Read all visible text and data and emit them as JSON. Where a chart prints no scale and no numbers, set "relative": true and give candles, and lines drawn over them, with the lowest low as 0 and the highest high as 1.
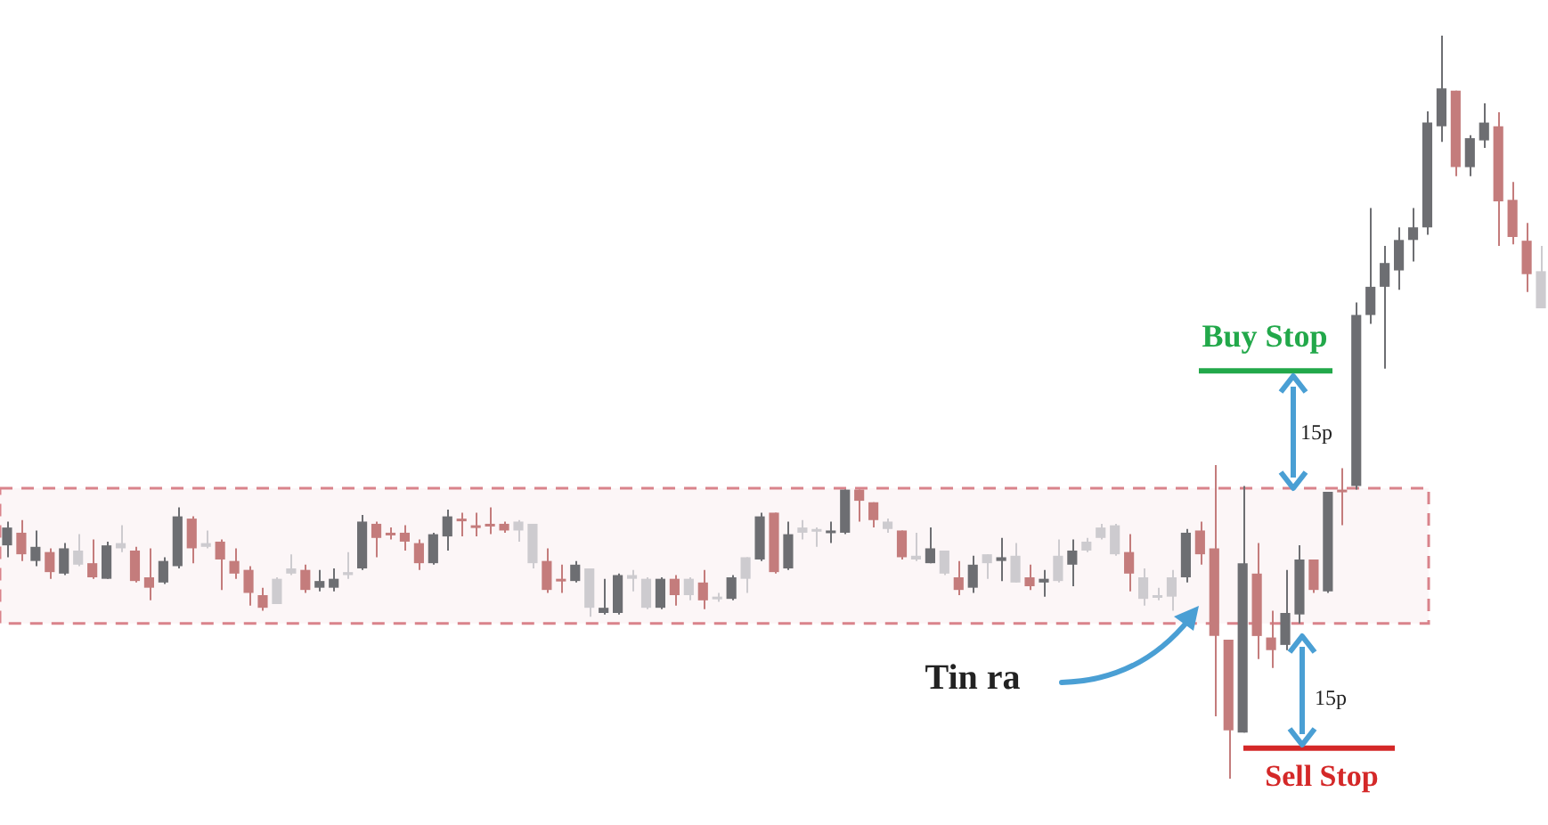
{
  "chart_data": {
    "type": "candlestick",
    "relative": true,
    "categories": [
      null,
      null,
      null,
      null,
      null,
      null,
      null,
      null,
      null,
      null,
      null,
      null,
      null,
      null,
      null,
      null,
      null,
      null,
      null,
      null,
      null,
      null,
      null,
      null,
      null,
      null,
      null,
      null,
      null,
      null,
      null,
      null,
      null,
      null,
      null,
      null,
      null,
      null,
      null,
      null,
      null,
      null,
      null,
      null,
      null,
      null,
      null,
      null,
      null,
      null,
      null,
      null,
      null,
      null,
      null,
      null,
      null,
      null,
      null,
      null,
      null,
      null,
      null,
      null,
      null,
      null,
      null,
      null,
      null,
      null,
      null,
      null,
      null,
      null,
      null,
      null,
      null,
      null,
      null,
      null,
      null,
      null,
      null,
      null,
      null,
      null,
      null,
      null,
      null,
      null,
      null,
      null,
      null,
      null,
      null,
      null,
      null,
      null,
      null,
      null,
      null,
      null,
      null,
      null,
      null,
      null,
      null,
      null,
      null
    ],
    "ohlc": [
      [
        0.314,
        0.346,
        0.298,
        0.338
      ],
      [
        0.331,
        0.348,
        0.293,
        0.302
      ],
      [
        0.293,
        0.334,
        0.286,
        0.312
      ],
      [
        0.305,
        0.31,
        0.269,
        0.278
      ],
      [
        0.276,
        0.317,
        0.274,
        0.31
      ],
      [
        0.307,
        0.329,
        0.286,
        0.288
      ],
      [
        0.29,
        0.322,
        0.269,
        0.271
      ],
      [
        0.269,
        0.319,
        0.269,
        0.314
      ],
      [
        0.317,
        0.341,
        0.305,
        0.31
      ],
      [
        0.307,
        0.312,
        0.264,
        0.266
      ],
      [
        0.271,
        0.31,
        0.24,
        0.257
      ],
      [
        0.264,
        0.298,
        0.262,
        0.293
      ],
      [
        0.286,
        0.365,
        0.283,
        0.353
      ],
      [
        0.35,
        0.353,
        0.29,
        0.31
      ],
      [
        0.317,
        0.334,
        0.31,
        0.312
      ],
      [
        0.319,
        0.322,
        0.254,
        0.295
      ],
      [
        0.293,
        0.31,
        0.269,
        0.276
      ],
      [
        0.281,
        0.286,
        0.233,
        0.25
      ],
      [
        0.247,
        0.257,
        0.226,
        0.23
      ],
      [
        0.269,
        0.271,
        0.235,
        0.235
      ],
      [
        0.283,
        0.302,
        0.274,
        0.276
      ],
      [
        0.281,
        0.288,
        0.25,
        0.254
      ],
      [
        0.257,
        0.281,
        0.252,
        0.266
      ],
      [
        0.257,
        0.283,
        0.252,
        0.269
      ],
      [
        0.278,
        0.305,
        0.269,
        0.274
      ],
      [
        0.283,
        0.355,
        0.281,
        0.346
      ],
      [
        0.343,
        0.346,
        0.298,
        0.324
      ],
      [
        0.331,
        0.338,
        0.322,
        0.329
      ],
      [
        0.331,
        0.341,
        0.307,
        0.319
      ],
      [
        0.317,
        0.322,
        0.281,
        0.29
      ],
      [
        0.29,
        0.331,
        0.288,
        0.329
      ],
      [
        0.326,
        0.362,
        0.307,
        0.353
      ],
      [
        0.35,
        0.358,
        0.326,
        0.348
      ],
      [
        0.341,
        0.358,
        0.326,
        0.338
      ],
      [
        0.343,
        0.365,
        0.329,
        0.341
      ],
      [
        0.343,
        0.346,
        0.331,
        0.334
      ],
      [
        0.346,
        0.348,
        0.319,
        0.334
      ],
      [
        0.343,
        0.343,
        0.283,
        0.29
      ],
      [
        0.293,
        0.31,
        0.25,
        0.254
      ],
      [
        0.269,
        0.288,
        0.25,
        0.266
      ],
      [
        0.266,
        0.293,
        0.264,
        0.288
      ],
      [
        0.283,
        0.283,
        0.218,
        0.23
      ],
      [
        0.223,
        0.269,
        0.221,
        0.23
      ],
      [
        0.223,
        0.276,
        0.221,
        0.274
      ],
      [
        0.274,
        0.281,
        0.252,
        0.269
      ],
      [
        0.269,
        0.271,
        0.228,
        0.23
      ],
      [
        0.23,
        0.271,
        0.228,
        0.269
      ],
      [
        0.269,
        0.274,
        0.233,
        0.247
      ],
      [
        0.269,
        0.271,
        0.24,
        0.247
      ],
      [
        0.264,
        0.281,
        0.228,
        0.24
      ],
      [
        0.245,
        0.25,
        0.238,
        0.242
      ],
      [
        0.242,
        0.274,
        0.24,
        0.271
      ],
      [
        0.298,
        0.298,
        0.25,
        0.269
      ],
      [
        0.295,
        0.358,
        0.293,
        0.353
      ],
      [
        0.358,
        0.358,
        0.276,
        0.278
      ],
      [
        0.283,
        0.346,
        0.281,
        0.329
      ],
      [
        0.338,
        0.348,
        0.322,
        0.331
      ],
      [
        0.336,
        0.338,
        0.312,
        0.334
      ],
      [
        0.331,
        0.346,
        0.317,
        0.334
      ],
      [
        0.331,
        0.389,
        0.329,
        0.389
      ],
      [
        0.389,
        0.389,
        0.346,
        0.374
      ],
      [
        0.372,
        0.372,
        0.338,
        0.348
      ],
      [
        0.346,
        0.35,
        0.331,
        0.336
      ],
      [
        0.334,
        0.334,
        0.295,
        0.298
      ],
      [
        0.3,
        0.331,
        0.293,
        0.295
      ],
      [
        0.29,
        0.338,
        0.29,
        0.31
      ],
      [
        0.307,
        0.307,
        0.274,
        0.276
      ],
      [
        0.271,
        0.293,
        0.247,
        0.254
      ],
      [
        0.257,
        0.3,
        0.25,
        0.288
      ],
      [
        0.302,
        0.302,
        0.269,
        0.29
      ],
      [
        0.293,
        0.324,
        0.266,
        0.298
      ],
      [
        0.3,
        0.317,
        0.264,
        0.264
      ],
      [
        0.271,
        0.288,
        0.254,
        0.259
      ],
      [
        0.264,
        0.281,
        0.245,
        0.269
      ],
      [
        0.3,
        0.322,
        0.264,
        0.266
      ],
      [
        0.288,
        0.322,
        0.259,
        0.307
      ],
      [
        0.319,
        0.324,
        0.305,
        0.307
      ],
      [
        0.338,
        0.343,
        0.322,
        0.324
      ],
      [
        0.341,
        0.343,
        0.3,
        0.302
      ],
      [
        0.305,
        0.329,
        0.252,
        0.276
      ],
      [
        0.271,
        0.283,
        0.233,
        0.242
      ],
      [
        0.247,
        0.257,
        0.24,
        0.245
      ],
      [
        0.271,
        0.281,
        0.226,
        0.245
      ],
      [
        0.271,
        0.336,
        0.264,
        0.331
      ],
      [
        0.334,
        0.346,
        0.288,
        0.302
      ],
      [
        0.31,
        0.422,
        0.084,
        0.192
      ],
      [
        0.187,
        0.187,
        0,
        0.065
      ],
      [
        0.062,
        0.394,
        0.062,
        0.29
      ],
      [
        0.276,
        0.317,
        0.161,
        0.192
      ],
      [
        0.19,
        0.226,
        0.149,
        0.173
      ],
      [
        0.18,
        0.281,
        0.173,
        0.223
      ],
      [
        0.221,
        0.314,
        0.209,
        0.295
      ],
      [
        0.295,
        0.295,
        0.25,
        0.254
      ],
      [
        0.252,
        0.386,
        0.25,
        0.386
      ],
      [
        0.389,
        0.418,
        0.341,
        0.386
      ],
      [
        0.394,
        0.641,
        0.389,
        0.624
      ],
      [
        0.624,
        0.768,
        0.612,
        0.662
      ],
      [
        0.662,
        0.717,
        0.552,
        0.694
      ],
      [
        0.684,
        0.742,
        0.658,
        0.725
      ],
      [
        0.725,
        0.768,
        0.696,
        0.742
      ],
      [
        0.742,
        0.898,
        0.732,
        0.883
      ],
      [
        0.878,
        1,
        0.857,
        0.929
      ],
      [
        0.926,
        0.926,
        0.811,
        0.823
      ],
      [
        0.823,
        0.866,
        0.811,
        0.862
      ],
      [
        0.859,
        0.909,
        0.849,
        0.883
      ],
      [
        0.878,
        0.897,
        0.717,
        0.777
      ],
      [
        0.779,
        0.803,
        0.719,
        0.729
      ],
      [
        0.724,
        0.748,
        0.655,
        0.679
      ],
      [
        0.683,
        0.717,
        0.633,
        0.633
      ]
    ],
    "colors": [
      "#6d6e72",
      "#c47c7c",
      "#6d6e72",
      "#c47c7c",
      "#6d6e72",
      "#cdcbcf",
      "#c47c7c",
      "#6d6e72",
      "#cdcbcf",
      "#c47c7c",
      "#c47c7c",
      "#6d6e72",
      "#6d6e72",
      "#c47c7c",
      "#cdcbcf",
      "#c47c7c",
      "#c47c7c",
      "#c47c7c",
      "#c47c7c",
      "#cdcbcf",
      "#cdcbcf",
      "#c47c7c",
      "#6d6e72",
      "#6d6e72",
      "#cdcbcf",
      "#6d6e72",
      "#c47c7c",
      "#c47c7c",
      "#c47c7c",
      "#c47c7c",
      "#6d6e72",
      "#6d6e72",
      "#c47c7c",
      "#c47c7c",
      "#c47c7c",
      "#c47c7c",
      "#cdcbcf",
      "#cdcbcf",
      "#c47c7c",
      "#c47c7c",
      "#6d6e72",
      "#cdcbcf",
      "#6d6e72",
      "#6d6e72",
      "#cdcbcf",
      "#cdcbcf",
      "#6d6e72",
      "#c47c7c",
      "#cdcbcf",
      "#c47c7c",
      "#cdcbcf",
      "#6d6e72",
      "#cdcbcf",
      "#6d6e72",
      "#c47c7c",
      "#6d6e72",
      "#cdcbcf",
      "#cdcbcf",
      "#6d6e72",
      "#6d6e72",
      "#c47c7c",
      "#c47c7c",
      "#cdcbcf",
      "#c47c7c",
      "#cdcbcf",
      "#6d6e72",
      "#cdcbcf",
      "#c47c7c",
      "#6d6e72",
      "#cdcbcf",
      "#6d6e72",
      "#cdcbcf",
      "#c47c7c",
      "#6d6e72",
      "#cdcbcf",
      "#6d6e72",
      "#cdcbcf",
      "#cdcbcf",
      "#cdcbcf",
      "#c47c7c",
      "#cdcbcf",
      "#cdcbcf",
      "#cdcbcf",
      "#6d6e72",
      "#c47c7c",
      "#c47c7c",
      "#c47c7c",
      "#6d6e72",
      "#c47c7c",
      "#c47c7c",
      "#6d6e72",
      "#6d6e72",
      "#c47c7c",
      "#6d6e72",
      "#c47c7c",
      "#6d6e72",
      "#6d6e72",
      "#6d6e72",
      "#6d6e72",
      "#6d6e72",
      "#6d6e72",
      "#6d6e72",
      "#c47c7c",
      "#6d6e72",
      "#6d6e72",
      "#c47c7c",
      "#c47c7c",
      "#c47c7c",
      "#cdcbcf"
    ],
    "bands": [
      {
        "axis": "y",
        "from": 0.209,
        "to": 0.391,
        "color": "#d9838b"
      }
    ],
    "ref_lines": [
      {
        "axis": "y",
        "value": 0.549,
        "label": "Buy Stop",
        "color": "#22a84a"
      },
      {
        "axis": "y",
        "value": 0.041,
        "label": "Sell Stop",
        "color": "#d42828"
      }
    ],
    "annotations": [
      "Tin ra",
      "15p",
      "15p"
    ]
  }
}
